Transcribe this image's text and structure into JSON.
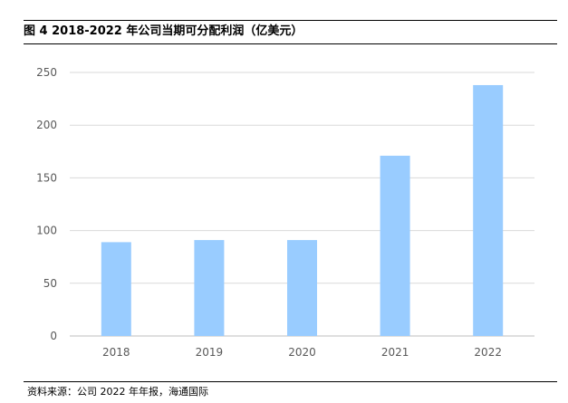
{
  "figure": {
    "title": "图 4 2018-2022 年公司当期可分配利润（亿美元）",
    "source": "资料来源：公司 2022 年年报，海通国际"
  },
  "chart_data": {
    "type": "bar",
    "title": "图 4 2018-2022 年公司当期可分配利润（亿美元）",
    "xlabel": "",
    "ylabel": "",
    "categories": [
      "2018",
      "2019",
      "2020",
      "2021",
      "2022"
    ],
    "values": [
      89,
      91,
      91,
      171,
      238
    ],
    "ylim": [
      0,
      250
    ],
    "yticks": [
      "0",
      "50",
      "100",
      "150",
      "200",
      "250"
    ],
    "grid": true,
    "legend": "none",
    "colors": {
      "bar": "#99ccff",
      "grid": "#d9d9d9",
      "axis": "#bfbfbf",
      "tick_text": "#595959"
    }
  }
}
